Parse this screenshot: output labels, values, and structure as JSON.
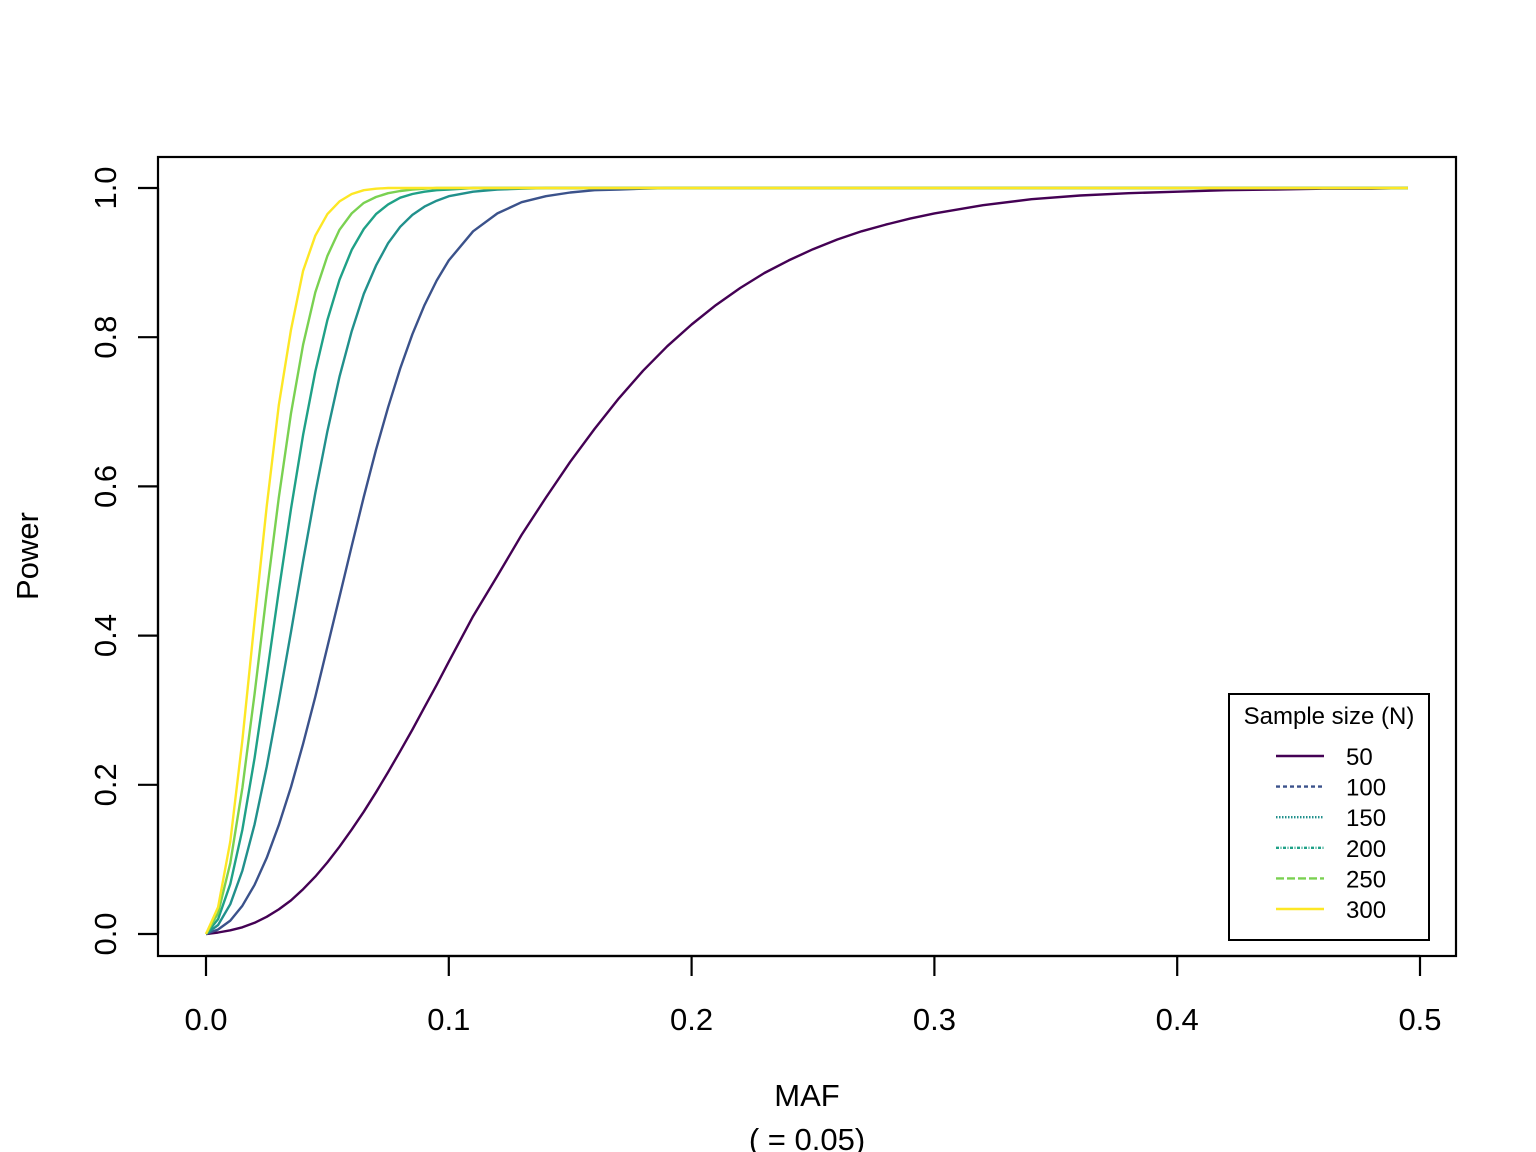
{
  "chart_data": {
    "type": "line",
    "title": "",
    "xlabel": "MAF",
    "ylabel": "Power",
    "subtitle": "(  = 0.05)",
    "xlim": [
      0.0,
      0.5
    ],
    "ylim": [
      0.0,
      1.0
    ],
    "x_ticks": [
      "0.0",
      "0.1",
      "0.2",
      "0.3",
      "0.4",
      "0.5"
    ],
    "y_ticks": [
      "0.0",
      "0.2",
      "0.4",
      "0.6",
      "0.8",
      "1.0"
    ],
    "grid": false,
    "legend": {
      "title": "Sample size (N)",
      "position": "bottom-right"
    },
    "x": [
      0.0,
      0.005,
      0.01,
      0.015,
      0.02,
      0.025,
      0.03,
      0.035,
      0.04,
      0.045,
      0.05,
      0.055,
      0.06,
      0.065,
      0.07,
      0.075,
      0.08,
      0.085,
      0.09,
      0.095,
      0.1,
      0.11,
      0.12,
      0.13,
      0.14,
      0.15,
      0.16,
      0.17,
      0.18,
      0.19,
      0.2,
      0.21,
      0.22,
      0.23,
      0.24,
      0.25,
      0.26,
      0.27,
      0.28,
      0.29,
      0.3,
      0.32,
      0.34,
      0.36,
      0.38,
      0.4,
      0.42,
      0.44,
      0.46,
      0.48,
      0.495
    ],
    "series": [
      {
        "name": "50",
        "color": "#440154",
        "dash": "solid",
        "values": [
          0.0,
          0.002,
          0.005,
          0.009,
          0.015,
          0.023,
          0.033,
          0.045,
          0.06,
          0.077,
          0.096,
          0.117,
          0.14,
          0.164,
          0.19,
          0.217,
          0.245,
          0.274,
          0.304,
          0.334,
          0.365,
          0.426,
          0.48,
          0.535,
          0.585,
          0.633,
          0.677,
          0.718,
          0.755,
          0.788,
          0.817,
          0.843,
          0.866,
          0.886,
          0.903,
          0.918,
          0.931,
          0.942,
          0.951,
          0.959,
          0.966,
          0.977,
          0.985,
          0.99,
          0.993,
          0.995,
          0.997,
          0.998,
          0.999,
          0.999,
          1.0
        ]
      },
      {
        "name": "100",
        "color": "#3B528B",
        "dash": "4,3",
        "values": [
          0.0,
          0.006,
          0.018,
          0.038,
          0.066,
          0.102,
          0.146,
          0.197,
          0.255,
          0.318,
          0.385,
          0.452,
          0.52,
          0.586,
          0.649,
          0.706,
          0.758,
          0.804,
          0.843,
          0.876,
          0.903,
          0.942,
          0.966,
          0.981,
          0.989,
          0.994,
          0.997,
          0.998,
          0.999,
          1.0,
          1.0,
          1.0,
          1.0,
          1.0,
          1.0,
          1.0,
          1.0,
          1.0,
          1.0,
          1.0,
          1.0,
          1.0,
          1.0,
          1.0,
          1.0,
          1.0,
          1.0,
          1.0,
          1.0,
          1.0,
          1.0
        ]
      },
      {
        "name": "150",
        "color": "#21908C",
        "dash": "1.5,1.5",
        "values": [
          0.0,
          0.012,
          0.04,
          0.085,
          0.147,
          0.224,
          0.312,
          0.405,
          0.5,
          0.591,
          0.674,
          0.747,
          0.808,
          0.858,
          0.896,
          0.926,
          0.948,
          0.964,
          0.975,
          0.983,
          0.989,
          0.995,
          0.998,
          0.999,
          1.0,
          1.0,
          1.0,
          1.0,
          1.0,
          1.0,
          1.0,
          1.0,
          1.0,
          1.0,
          1.0,
          1.0,
          1.0,
          1.0,
          1.0,
          1.0,
          1.0,
          1.0,
          1.0,
          1.0,
          1.0,
          1.0,
          1.0,
          1.0,
          1.0,
          1.0,
          1.0
        ]
      },
      {
        "name": "200",
        "color": "#1FA187",
        "dash": "3,1.5,1,1.5",
        "values": [
          0.0,
          0.02,
          0.067,
          0.14,
          0.236,
          0.346,
          0.46,
          0.57,
          0.669,
          0.754,
          0.823,
          0.877,
          0.917,
          0.945,
          0.965,
          0.978,
          0.987,
          0.992,
          0.995,
          0.997,
          0.998,
          1.0,
          1.0,
          1.0,
          1.0,
          1.0,
          1.0,
          1.0,
          1.0,
          1.0,
          1.0,
          1.0,
          1.0,
          1.0,
          1.0,
          1.0,
          1.0,
          1.0,
          1.0,
          1.0,
          1.0,
          1.0,
          1.0,
          1.0,
          1.0,
          1.0,
          1.0,
          1.0,
          1.0,
          1.0,
          1.0
        ]
      },
      {
        "name": "250",
        "color": "#7AD151",
        "dash": "8,3",
        "values": [
          0.0,
          0.028,
          0.095,
          0.196,
          0.322,
          0.457,
          0.585,
          0.698,
          0.79,
          0.86,
          0.909,
          0.944,
          0.966,
          0.98,
          0.988,
          0.993,
          0.996,
          0.998,
          0.999,
          1.0,
          1.0,
          1.0,
          1.0,
          1.0,
          1.0,
          1.0,
          1.0,
          1.0,
          1.0,
          1.0,
          1.0,
          1.0,
          1.0,
          1.0,
          1.0,
          1.0,
          1.0,
          1.0,
          1.0,
          1.0,
          1.0,
          1.0,
          1.0,
          1.0,
          1.0,
          1.0,
          1.0,
          1.0,
          1.0,
          1.0,
          1.0
        ]
      },
      {
        "name": "300",
        "color": "#FDE725",
        "dash": "solid",
        "values": [
          0.0,
          0.036,
          0.124,
          0.26,
          0.42,
          0.573,
          0.709,
          0.81,
          0.889,
          0.936,
          0.965,
          0.982,
          0.992,
          0.997,
          0.999,
          1.0,
          1.0,
          1.0,
          1.0,
          1.0,
          1.0,
          1.0,
          1.0,
          1.0,
          1.0,
          1.0,
          1.0,
          1.0,
          1.0,
          1.0,
          1.0,
          1.0,
          1.0,
          1.0,
          1.0,
          1.0,
          1.0,
          1.0,
          1.0,
          1.0,
          1.0,
          1.0,
          1.0,
          1.0,
          1.0,
          1.0,
          1.0,
          1.0,
          1.0,
          1.0,
          1.0
        ]
      }
    ]
  }
}
